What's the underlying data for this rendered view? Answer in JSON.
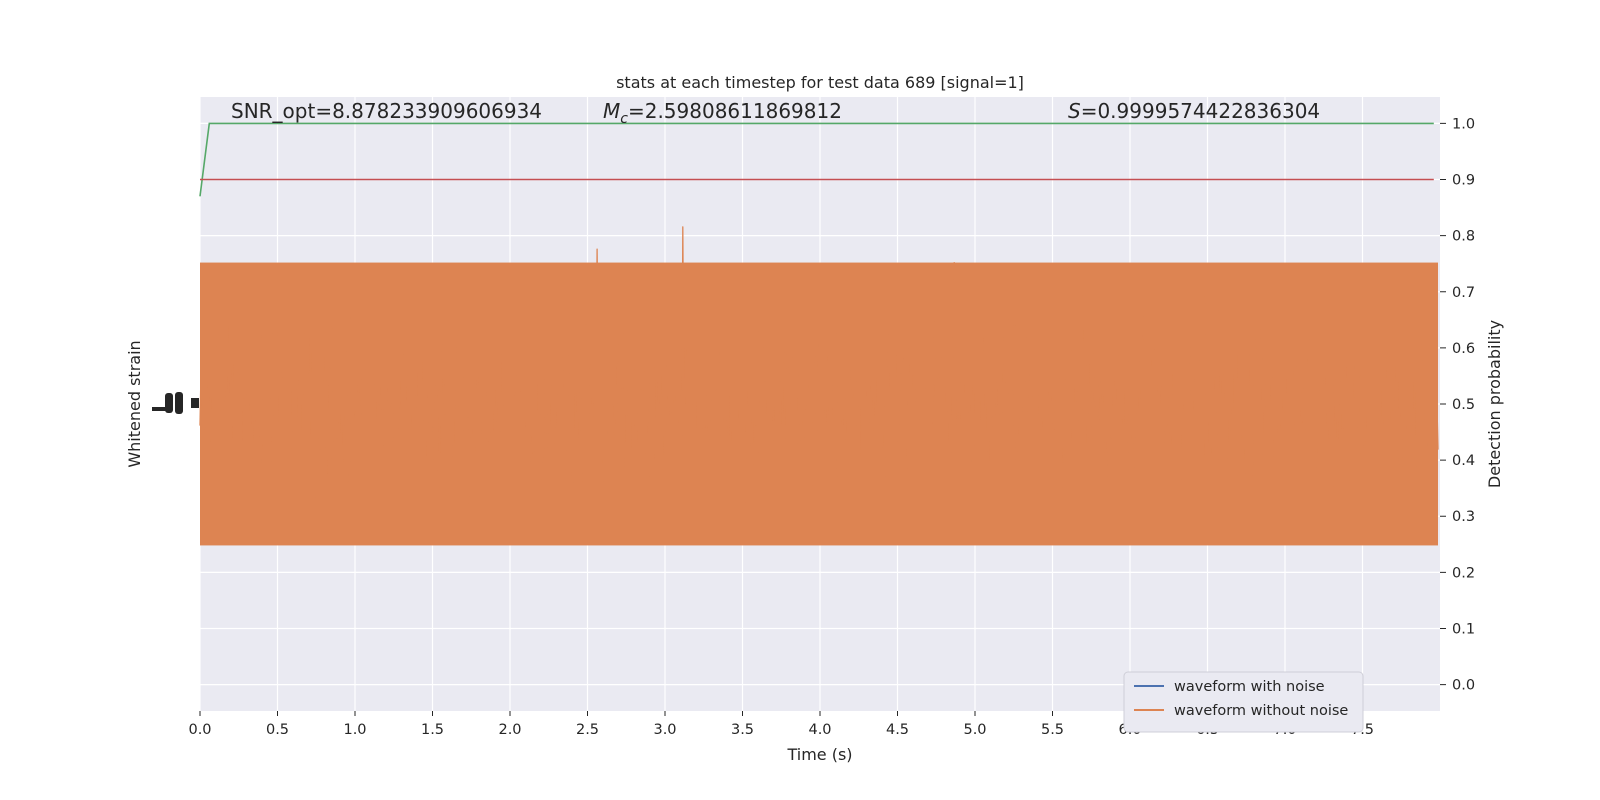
{
  "chart_data": {
    "type": "line",
    "title": "stats at each timestep for test data 689 [signal=1]",
    "xlabel": "Time (s)",
    "ylabel_left": "Whitened strain",
    "ylabel_right": "Detection probability",
    "xlim": [
      0.0,
      8.0
    ],
    "ylim_right": [
      -0.047,
      1.047
    ],
    "x_ticks": [
      "0.0",
      "0.5",
      "1.0",
      "1.5",
      "2.0",
      "2.5",
      "3.0",
      "3.5",
      "4.0",
      "4.5",
      "5.0",
      "5.5",
      "6.0",
      "6.5",
      "7.0",
      "7.5"
    ],
    "x_tick_values": [
      0.0,
      0.5,
      1.0,
      1.5,
      2.0,
      2.5,
      3.0,
      3.5,
      4.0,
      4.5,
      5.0,
      5.5,
      6.0,
      6.5,
      7.0,
      7.5
    ],
    "y_ticks_right": [
      "0.0",
      "0.1",
      "0.2",
      "0.3",
      "0.4",
      "0.5",
      "0.6",
      "0.7",
      "0.8",
      "0.9",
      "1.0"
    ],
    "y_tick_values_right": [
      0.0,
      0.1,
      0.2,
      0.3,
      0.4,
      0.5,
      0.6,
      0.7,
      0.8,
      0.9,
      1.0
    ],
    "grid": true,
    "legend_position": "lower-right",
    "annotations": [
      {
        "text": "SNR_opt=8.878233909606934",
        "x": 0.2,
        "y": 1.01
      },
      {
        "text": "M",
        "sub": "c",
        "rest": "=2.59808611869812",
        "x": 2.6,
        "y": 1.01,
        "italic_symbol": true
      },
      {
        "text": "S",
        "rest": "=0.9999574422836304",
        "x": 5.6,
        "y": 1.01,
        "italic_symbol": true
      }
    ],
    "series": [
      {
        "name": "waveform with noise",
        "color": "#4c72b0",
        "visible_in_plot": false
      },
      {
        "name": "waveform without noise",
        "color": "#dd8452",
        "amplitude_envelope": 0.35,
        "noise_band_center": 0.5
      },
      {
        "color": "#55a868",
        "x": [
          0.0,
          0.06,
          0.1,
          7.96
        ],
        "y": [
          0.87,
          1.0,
          1.0,
          1.0
        ]
      },
      {
        "color": "#c44e52",
        "x": [
          0.0,
          7.96
        ],
        "y": [
          0.9,
          0.9
        ]
      }
    ]
  },
  "colors": {
    "axes_bg": "#eaeaf2",
    "grid": "#ffffff",
    "text": "#262626"
  }
}
